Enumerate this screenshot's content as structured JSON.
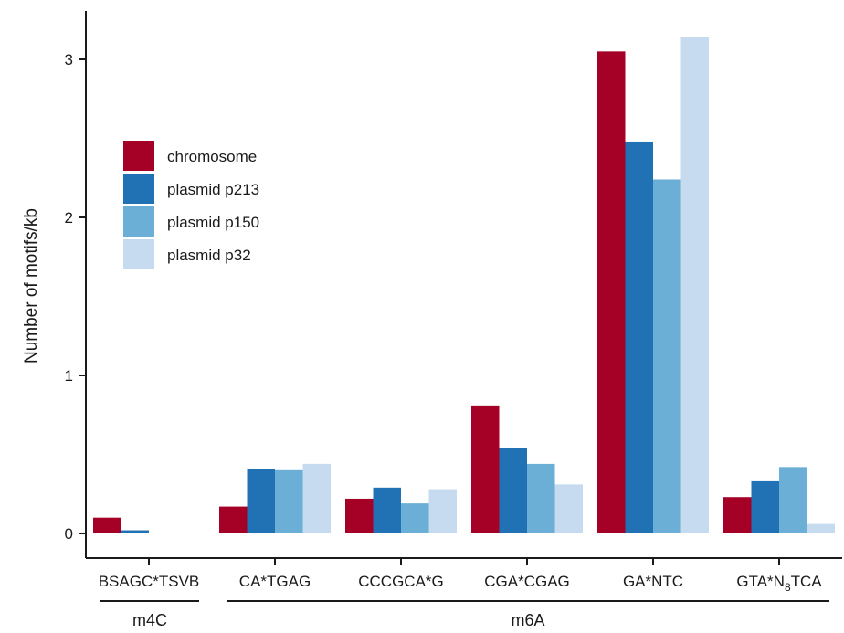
{
  "chart_data": {
    "type": "bar",
    "title": "",
    "xlabel": "",
    "ylabel": "Number of motifs/kb",
    "ylim": [
      0,
      3.3
    ],
    "yticks": [
      0,
      1,
      2,
      3
    ],
    "grid": false,
    "legend_position": "top-left",
    "categories": [
      "BSAGC*TSVB",
      "CA*TGAG",
      "CCCGCA*G",
      "CGA*CGAG",
      "GA*NTC",
      "GTA*N8TCA"
    ],
    "category_label_parts": [
      {
        "main": "BSAGC*TSVB",
        "sub": "",
        "tail": ""
      },
      {
        "main": "CA*TGAG",
        "sub": "",
        "tail": ""
      },
      {
        "main": "CCCGCA*G",
        "sub": "",
        "tail": ""
      },
      {
        "main": "CGA*CGAG",
        "sub": "",
        "tail": ""
      },
      {
        "main": "GA*NTC",
        "sub": "",
        "tail": ""
      },
      {
        "main": "GTA*N",
        "sub": "8",
        "tail": "TCA"
      }
    ],
    "series": [
      {
        "name": "chromosome",
        "color": "#a50026",
        "values": [
          0.1,
          0.17,
          0.22,
          0.81,
          3.05,
          0.23
        ]
      },
      {
        "name": "plasmid p213",
        "color": "#2171b5",
        "values": [
          0.02,
          0.41,
          0.29,
          0.54,
          2.48,
          0.33
        ]
      },
      {
        "name": "plasmid p150",
        "color": "#6baed6",
        "values": [
          0.0,
          0.4,
          0.19,
          0.44,
          2.24,
          0.42
        ]
      },
      {
        "name": "plasmid p32",
        "color": "#c6dbef",
        "values": [
          0.0,
          0.44,
          0.28,
          0.31,
          3.14,
          0.06
        ]
      }
    ],
    "groups": [
      {
        "label": "m4C",
        "categories": [
          "BSAGC*TSVB"
        ]
      },
      {
        "label": "m6A",
        "categories": [
          "CA*TGAG",
          "CCCGCA*G",
          "CGA*CGAG",
          "GA*NTC",
          "GTA*N8TCA"
        ]
      }
    ]
  }
}
